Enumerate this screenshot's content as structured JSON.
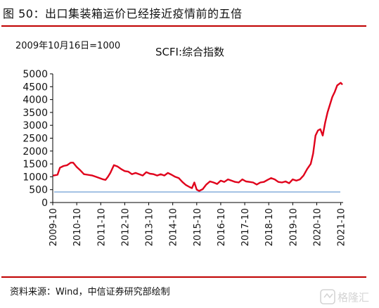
{
  "header": {
    "title": "图 50：出口集装箱运价已经接近疫情前的五倍",
    "note": "2009年10月16日=1000"
  },
  "footer": {
    "source": "资料来源：Wind，中信证券研究部绘制"
  },
  "watermark": {
    "text": "格隆汇"
  },
  "colors": {
    "accent": "#c00000",
    "series": "#e0001b",
    "reference": "#4a86c8"
  },
  "chart_data": {
    "type": "line",
    "title": "SCFI:综合指数",
    "ylim": [
      0,
      5000
    ],
    "yticks": [
      0,
      500,
      1000,
      1500,
      2000,
      2500,
      3000,
      3500,
      4000,
      4500,
      5000
    ],
    "xlim": [
      2009.75,
      2021.85
    ],
    "xticks": [
      {
        "label": "2009-10",
        "x": 2009.75
      },
      {
        "label": "2010-10",
        "x": 2010.75
      },
      {
        "label": "2011-10",
        "x": 2011.75
      },
      {
        "label": "2012-10",
        "x": 2012.75
      },
      {
        "label": "2013-10",
        "x": 2013.75
      },
      {
        "label": "2014-10",
        "x": 2014.75
      },
      {
        "label": "2015-10",
        "x": 2015.75
      },
      {
        "label": "2016-10",
        "x": 2016.75
      },
      {
        "label": "2017-10",
        "x": 2017.75
      },
      {
        "label": "2018-10",
        "x": 2018.75
      },
      {
        "label": "2019-10",
        "x": 2019.75
      },
      {
        "label": "2020-10",
        "x": 2020.75
      },
      {
        "label": "2021-10",
        "x": 2021.75
      }
    ],
    "reference_line": 410,
    "series": [
      {
        "x": [
          2009.79,
          2009.95,
          2010.05,
          2010.2,
          2010.35,
          2010.5,
          2010.6,
          2010.75,
          2010.9,
          2011.05,
          2011.2,
          2011.4,
          2011.55,
          2011.7,
          2011.85,
          2011.95,
          2012.05,
          2012.15,
          2012.3,
          2012.45,
          2012.6,
          2012.75,
          2012.9,
          2013.05,
          2013.2,
          2013.35,
          2013.5,
          2013.65,
          2013.8,
          2013.95,
          2014.1,
          2014.25,
          2014.4,
          2014.55,
          2014.7,
          2014.85,
          2015.0,
          2015.15,
          2015.3,
          2015.45,
          2015.55,
          2015.65,
          2015.75,
          2015.85,
          2016.0,
          2016.15,
          2016.3,
          2016.45,
          2016.6,
          2016.75,
          2016.9,
          2017.05,
          2017.2,
          2017.35,
          2017.5,
          2017.65,
          2017.8,
          2017.95,
          2018.1,
          2018.25,
          2018.4,
          2018.55,
          2018.7,
          2018.85,
          2019.0,
          2019.15,
          2019.3,
          2019.45,
          2019.6,
          2019.75,
          2019.9,
          2020.05,
          2020.2,
          2020.35,
          2020.5,
          2020.6,
          2020.7,
          2020.8,
          2020.9,
          2021.0,
          2021.1,
          2021.2,
          2021.3,
          2021.4,
          2021.5,
          2021.6,
          2021.7,
          2021.75,
          2021.8
        ],
        "y": [
          1050,
          1080,
          1350,
          1420,
          1450,
          1550,
          1550,
          1380,
          1250,
          1100,
          1080,
          1050,
          1000,
          950,
          900,
          880,
          1000,
          1150,
          1450,
          1400,
          1300,
          1220,
          1200,
          1100,
          1150,
          1100,
          1050,
          1180,
          1120,
          1100,
          1050,
          1100,
          1050,
          1150,
          1080,
          1000,
          950,
          800,
          680,
          600,
          560,
          780,
          500,
          450,
          520,
          700,
          820,
          780,
          720,
          850,
          800,
          900,
          850,
          800,
          780,
          900,
          820,
          800,
          780,
          700,
          780,
          800,
          880,
          950,
          900,
          800,
          780,
          820,
          750,
          900,
          850,
          900,
          1050,
          1300,
          1500,
          1900,
          2600,
          2800,
          2850,
          2600,
          3100,
          3500,
          3800,
          4100,
          4300,
          4550,
          4620,
          4650,
          4600
        ]
      }
    ]
  }
}
